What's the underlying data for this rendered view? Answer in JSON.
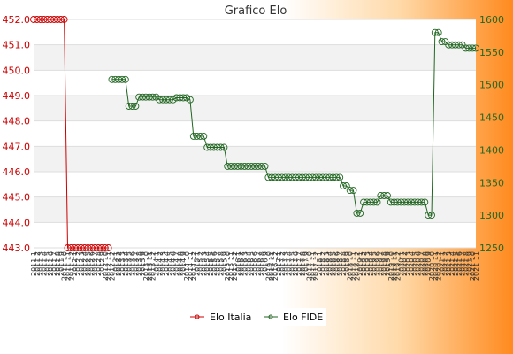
{
  "chart_data": {
    "type": "line",
    "title": "Grafico Elo",
    "left_axis": {
      "ylim": [
        443.0,
        452.0
      ],
      "ticks": [
        "443.0",
        "444.0",
        "445.0",
        "446.0",
        "447.0",
        "448.0",
        "449.0",
        "450.0",
        "451.0",
        "452.0"
      ],
      "color": "#cc0000"
    },
    "right_axis": {
      "ylim": [
        1250,
        1600
      ],
      "ticks": [
        "1250",
        "1300",
        "1350",
        "1400",
        "1450",
        "1500",
        "1550",
        "1600"
      ],
      "color": "#226622"
    },
    "legend": {
      "placement": "bottom-center"
    },
    "grid": true,
    "series": [
      {
        "name": "Elo Italia",
        "axis": "left",
        "color": "#cc0000",
        "x": [
          0,
          1,
          2,
          3,
          4,
          5,
          6,
          7,
          8,
          9,
          10,
          11,
          12,
          13,
          14,
          15,
          16,
          17,
          18,
          19,
          20,
          21,
          22
        ],
        "values": [
          452,
          452,
          452,
          452,
          452,
          452,
          452,
          452,
          452,
          452,
          443,
          443,
          443,
          443,
          443,
          443,
          443,
          443,
          443,
          443,
          443,
          443,
          443
        ]
      },
      {
        "name": "Elo FIDE",
        "axis": "right",
        "color": "#226622",
        "x": [
          23,
          24,
          25,
          26,
          27,
          28,
          29,
          30,
          31,
          32,
          33,
          34,
          35,
          36,
          37,
          38,
          39,
          40,
          41,
          42,
          43,
          44,
          45,
          46,
          47,
          48,
          49,
          50,
          51,
          52,
          53,
          54,
          55,
          56,
          57,
          58,
          59,
          60,
          61,
          62,
          63,
          64,
          65,
          66,
          67,
          68,
          69,
          70,
          71,
          72,
          73,
          74,
          75,
          76,
          77,
          78,
          79,
          80,
          81,
          82,
          83,
          84,
          85,
          86,
          87,
          88,
          89,
          90,
          91,
          92,
          93,
          94,
          95,
          96,
          97,
          98,
          99,
          100,
          101,
          102,
          103,
          104,
          105,
          106,
          107,
          108,
          109,
          110,
          111,
          112,
          113,
          114,
          115,
          116,
          117,
          118,
          119,
          120,
          121,
          122,
          123,
          124,
          125,
          126,
          127,
          128,
          129,
          130
        ],
        "values": [
          1508,
          1508,
          1508,
          1508,
          1508,
          1467,
          1467,
          1467,
          1481,
          1481,
          1481,
          1481,
          1481,
          1481,
          1477,
          1477,
          1477,
          1477,
          1477,
          1480,
          1480,
          1480,
          1480,
          1477,
          1421,
          1421,
          1421,
          1421,
          1404,
          1404,
          1404,
          1404,
          1404,
          1404,
          1375,
          1375,
          1375,
          1375,
          1375,
          1375,
          1375,
          1375,
          1375,
          1375,
          1375,
          1375,
          1358,
          1358,
          1358,
          1358,
          1358,
          1358,
          1358,
          1358,
          1358,
          1358,
          1358,
          1358,
          1358,
          1358,
          1358,
          1358,
          1358,
          1358,
          1358,
          1358,
          1358,
          1358,
          1345,
          1345,
          1338,
          1338,
          1303,
          1303,
          1320,
          1320,
          1320,
          1320,
          1320,
          1330,
          1330,
          1330,
          1320,
          1320,
          1320,
          1320,
          1320,
          1320,
          1320,
          1320,
          1320,
          1320,
          1320,
          1300,
          1300,
          1580,
          1580,
          1566,
          1566,
          1561,
          1561,
          1561,
          1561,
          1561,
          1556,
          1556,
          1556,
          1556
        ]
      }
    ],
    "x_tick_labels": [
      "2011 1",
      "2011 2",
      "2011 3",
      "2011 4",
      "2011 5",
      "2011 6",
      "2011 7",
      "2011 8",
      "2011 9",
      "2011 10",
      "2011 11",
      "2011 12",
      "2012 1",
      "2012 2",
      "2012 3",
      "2012 4",
      "2012 5",
      "2012 6",
      "2012 7",
      "2012 8",
      "2012 9",
      "2012 10",
      "2012 11",
      "2012 12",
      "2013 1",
      "2013 2",
      "2013 3",
      "2013 4",
      "2013 5",
      "2013 6",
      "2013 7",
      "2013 8",
      "2013 9",
      "2013 10",
      "2013 11",
      "2013 12",
      "2014 1",
      "2014 2",
      "2014 3",
      "2014 4",
      "2014 5",
      "2014 6",
      "2014 7",
      "2014 8",
      "2014 9",
      "2014 10",
      "2014 11",
      "2014 12",
      "2015 1",
      "2015 2",
      "2015 3",
      "2015 4",
      "2015 5",
      "2015 6",
      "2015 7",
      "2015 8",
      "2015 9",
      "2015 10",
      "2015 11",
      "2015 12",
      "2016 1",
      "2016 2",
      "2016 3",
      "2016 4",
      "2016 5",
      "2016 6",
      "2016 7",
      "2016 8",
      "2016 9",
      "2016 10",
      "2016 11",
      "2016 12",
      "2017 1",
      "2017 2",
      "2017 3",
      "2017 4",
      "2017 5",
      "2017 6",
      "2017 7",
      "2017 8",
      "2017 9",
      "2017 10",
      "2017 11",
      "2017 12",
      "2018 1",
      "2018 2",
      "2018 3",
      "2018 4",
      "2018 5",
      "2018 6",
      "2018 7",
      "2018 8",
      "2018 9",
      "2018 10",
      "2018 11",
      "2018 12",
      "2019 1",
      "2019 2",
      "2019 3",
      "2019 4",
      "2019 5",
      "2019 6",
      "2019 7",
      "2019 8",
      "2019 9",
      "2019 10",
      "2019 11",
      "2019 12",
      "2020 1",
      "2020 2",
      "2020 3",
      "2020 4",
      "2020 5",
      "2020 6",
      "2020 7",
      "2020 8",
      "2020 9",
      "2020 10",
      "2020 11",
      "2020 12",
      "2021 1",
      "2021 2",
      "2021 3",
      "2021 4",
      "2021 5",
      "2021 6",
      "2021 7",
      "2021 8",
      "2021 9",
      "2021 10",
      "2021 11"
    ],
    "x_range": [
      0,
      130
    ]
  }
}
